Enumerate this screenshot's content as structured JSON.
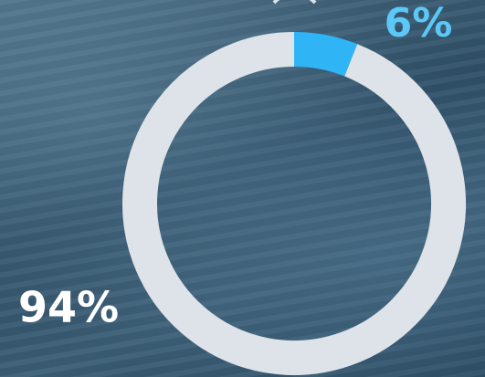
{
  "chart_data": {
    "type": "donut",
    "values": [
      6,
      94
    ],
    "value_labels": [
      "6%",
      "94%"
    ],
    "colors": [
      "#2fb4f5",
      "#dde3e8"
    ],
    "label_colors": [
      "#5cc8f8",
      "#ffffff"
    ]
  }
}
